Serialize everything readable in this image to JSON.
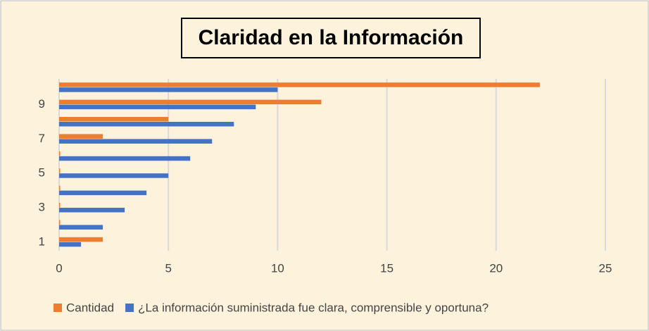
{
  "chart_data": {
    "type": "hbar",
    "title": "Claridad en la Información",
    "categories": [
      "1",
      null,
      "3",
      null,
      "5",
      null,
      "7",
      null,
      "9",
      null
    ],
    "series": [
      {
        "name": "Cantidad",
        "color": "#ed7d31",
        "values": [
          2,
          0,
          0,
          0,
          0,
          0,
          2,
          5,
          12,
          22
        ]
      },
      {
        "name": "¿La información suministrada fue clara, comprensible y oportuna?",
        "color": "#4472c4",
        "values": [
          1,
          2,
          3,
          4,
          5,
          6,
          7,
          8,
          9,
          10
        ]
      }
    ],
    "xlim": [
      0,
      25
    ],
    "xticks": [
      0,
      5,
      10,
      15,
      20,
      25
    ],
    "grid": true,
    "legend": "bottom"
  }
}
